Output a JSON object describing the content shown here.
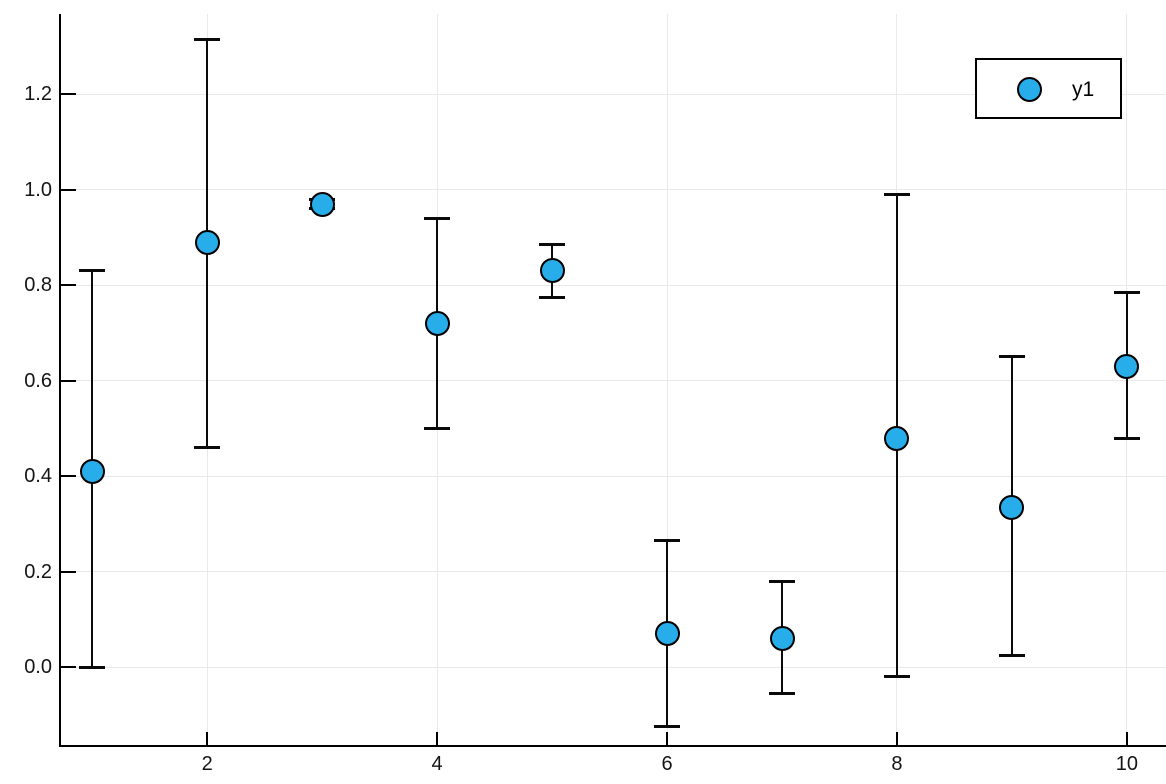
{
  "chart_data": {
    "type": "scatter",
    "title": "",
    "xlabel": "",
    "ylabel": "",
    "grid": true,
    "legend_position": "top-right",
    "series": [
      {
        "name": "y1",
        "x": [
          1,
          2,
          3,
          4,
          5,
          6,
          7,
          8,
          9,
          10
        ],
        "y": [
          0.41,
          0.89,
          0.97,
          0.72,
          0.83,
          0.07,
          0.06,
          0.48,
          0.335,
          0.63
        ],
        "err_low": [
          0.0,
          0.46,
          0.96,
          0.5,
          0.775,
          -0.125,
          -0.055,
          -0.02,
          0.025,
          0.48
        ],
        "err_high": [
          0.83,
          1.315,
          0.98,
          0.94,
          0.885,
          0.265,
          0.18,
          0.99,
          0.65,
          0.785
        ]
      }
    ],
    "xticks": [
      2,
      4,
      6,
      8,
      10
    ],
    "xtick_labels": [
      "2",
      "4",
      "6",
      "8",
      "10"
    ],
    "yticks": [
      0.0,
      0.2,
      0.4,
      0.6,
      0.8,
      1.0,
      1.2
    ],
    "ytick_labels": [
      "0.0",
      "0.2",
      "0.4",
      "0.6",
      "0.8",
      "1.0",
      "1.2"
    ],
    "xlim": [
      0.72,
      10.34
    ],
    "ylim": [
      -0.165,
      1.368
    ],
    "colors": {
      "marker_fill": "#27ADEA",
      "marker_stroke": "#000000",
      "errorbar": "#0a0a0a",
      "grid": "#e9e9e9",
      "axis": "#000000",
      "background": "#ffffff"
    }
  }
}
